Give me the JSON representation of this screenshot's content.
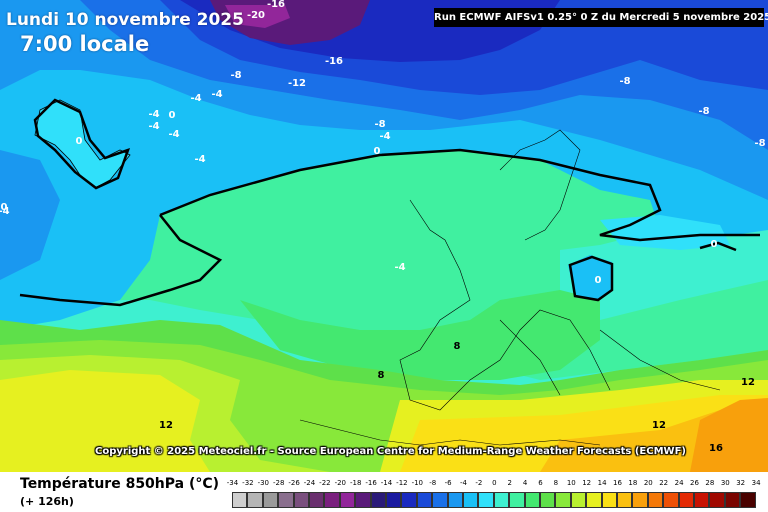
{
  "header": {
    "date": "Lundi 10 novembre 2025",
    "time": "7:00 locale",
    "run_info": "Run ECMWF AIFSv1 0.25° 0 Z du Mercredi 5 novembre 2025"
  },
  "copyright": "Copyright © 2025 Meteociel.fr - Source European Centre for Medium-Range Weather Forecasts (ECMWF)",
  "legend": {
    "title": "Température 850hPa (°C)",
    "subtitle": "(+ 126h)",
    "scale": [
      {
        "value": "-34",
        "color": "#cfcfcf"
      },
      {
        "value": "-32",
        "color": "#b5b5b5"
      },
      {
        "value": "-30",
        "color": "#9a9a9a"
      },
      {
        "value": "-28",
        "color": "#8a6f8e"
      },
      {
        "value": "-26",
        "color": "#7a4f7e"
      },
      {
        "value": "-24",
        "color": "#6a2f6e"
      },
      {
        "value": "-22",
        "color": "#7a1f7e"
      },
      {
        "value": "-20",
        "color": "#92269a"
      },
      {
        "value": "-18",
        "color": "#5a1a7a"
      },
      {
        "value": "-16",
        "color": "#2a1a78"
      },
      {
        "value": "-14",
        "color": "#1a1aa0"
      },
      {
        "value": "-12",
        "color": "#1a2ac0"
      },
      {
        "value": "-10",
        "color": "#1a4ad8"
      },
      {
        "value": "-8",
        "color": "#1a70e8"
      },
      {
        "value": "-6",
        "color": "#1a98f0"
      },
      {
        "value": "-4",
        "color": "#1ac0f6"
      },
      {
        "value": "-2",
        "color": "#30e0fa"
      },
      {
        "value": "0",
        "color": "#3ef0d0"
      },
      {
        "value": "2",
        "color": "#40f0a0"
      },
      {
        "value": "4",
        "color": "#44e870"
      },
      {
        "value": "6",
        "color": "#5ee04a"
      },
      {
        "value": "8",
        "color": "#88e83a"
      },
      {
        "value": "10",
        "color": "#b8f030"
      },
      {
        "value": "12",
        "color": "#e6f020"
      },
      {
        "value": "14",
        "color": "#fae016"
      },
      {
        "value": "16",
        "color": "#fac010"
      },
      {
        "value": "18",
        "color": "#f8a00c"
      },
      {
        "value": "20",
        "color": "#f47808"
      },
      {
        "value": "22",
        "color": "#ee5006"
      },
      {
        "value": "24",
        "color": "#e42a04"
      },
      {
        "value": "26",
        "color": "#c81202"
      },
      {
        "value": "28",
        "color": "#a00800"
      },
      {
        "value": "30",
        "color": "#7a0400"
      },
      {
        "value": "32",
        "color": "#4a0200"
      },
      {
        "value": "34",
        "color": "#100000"
      }
    ]
  },
  "map_labels": [
    "-20",
    "-16",
    "-16",
    "-8",
    "-4",
    "-4",
    "-12",
    "-8",
    "-8",
    "-8",
    "0",
    "-4",
    "-4",
    "-4",
    "0",
    "-4",
    "-8",
    "-4",
    "0",
    "-4",
    "0",
    "-4",
    "0",
    "0",
    "8",
    "8",
    "12",
    "12",
    "12",
    "16"
  ]
}
